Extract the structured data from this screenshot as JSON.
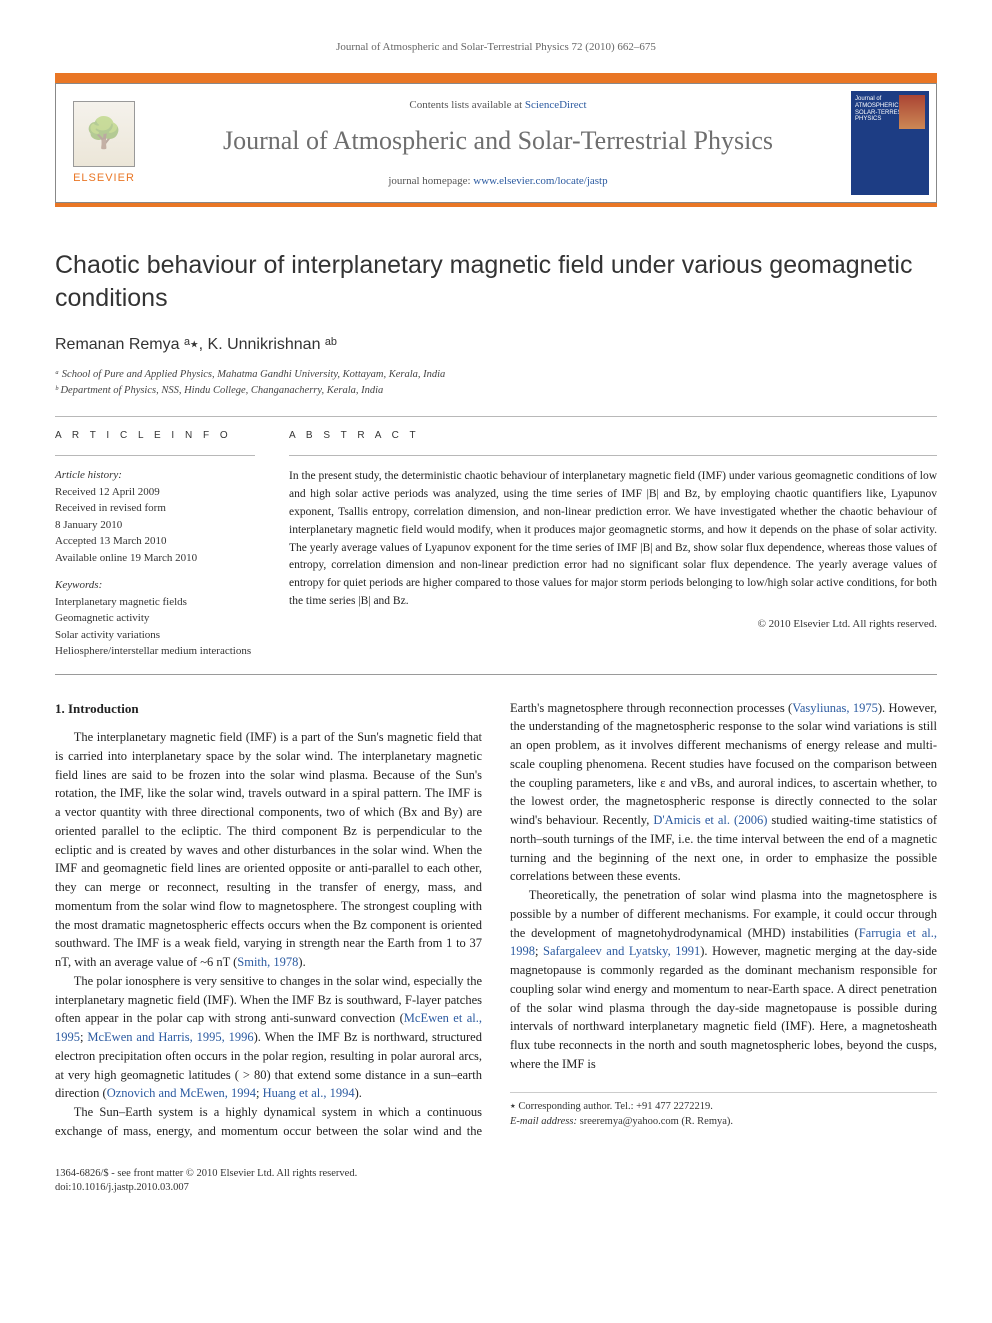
{
  "running_head": "Journal of Atmospheric and Solar-Terrestrial Physics 72 (2010) 662–675",
  "header": {
    "elsevier_label": "ELSEVIER",
    "contents_line_prefix": "Contents lists available at ",
    "contents_link": "ScienceDirect",
    "journal_title": "Journal of Atmospheric and Solar-Terrestrial Physics",
    "homepage_prefix": "journal homepage: ",
    "homepage_link": "www.elsevier.com/locate/jastp",
    "cover_text": "Journal of ATMOSPHERIC and SOLAR-TERRESTRIAL PHYSICS",
    "colors": {
      "accent": "#e97625",
      "link": "#2b5aa0",
      "border": "#888888",
      "cover_bg": "#1d3d84"
    }
  },
  "article": {
    "title": "Chaotic behaviour of interplanetary magnetic field under various geomagnetic conditions",
    "authors": "Remanan Remya ᵃ٭, K. Unnikrishnan ᵃᵇ",
    "affiliations": {
      "a": "ᵃ School of Pure and Applied Physics, Mahatma Gandhi University, Kottayam, Kerala, India",
      "b": "ᵇ Department of Physics, NSS, Hindu College, Changanacherry, Kerala, India"
    }
  },
  "info": {
    "heading": "A R T I C L E   I N F O",
    "history_label": "Article history:",
    "history": [
      "Received 12 April 2009",
      "Received in revised form",
      "8 January 2010",
      "Accepted 13 March 2010",
      "Available online 19 March 2010"
    ],
    "keywords_label": "Keywords:",
    "keywords": [
      "Interplanetary magnetic fields",
      "Geomagnetic activity",
      "Solar activity variations",
      "Heliosphere/interstellar medium interactions"
    ]
  },
  "abstract": {
    "heading": "A B S T R A C T",
    "body": "In the present study, the deterministic chaotic behaviour of interplanetary magnetic field (IMF) under various geomagnetic conditions of low and high solar active periods was analyzed, using the time series of IMF |B| and Bz, by employing chaotic quantifiers like, Lyapunov exponent, Tsallis entropy, correlation dimension, and non-linear prediction error. We have investigated whether the chaotic behaviour of interplanetary magnetic field would modify, when it produces major geomagnetic storms, and how it depends on the phase of solar activity. The yearly average values of Lyapunov exponent for the time series of IMF |B| and Bz, show solar flux dependence, whereas those values of entropy, correlation dimension and non-linear prediction error had no significant solar flux dependence. The yearly average values of entropy for quiet periods are higher compared to those values for major storm periods belonging to low/high solar active conditions, for both the time series |B| and Bz.",
    "copyright": "© 2010 Elsevier Ltd. All rights reserved."
  },
  "body_text": {
    "section_heading": "1. Introduction",
    "p1": "The interplanetary magnetic field (IMF) is a part of the Sun's magnetic field that is carried into interplanetary space by the solar wind. The interplanetary magnetic field lines are said to be frozen into the solar wind plasma. Because of the Sun's rotation, the IMF, like the solar wind, travels outward in a spiral pattern. The IMF is a vector quantity with three directional components, two of which (Bx and By) are oriented parallel to the ecliptic. The third component Bz is perpendicular to the ecliptic and is created by waves and other disturbances in the solar wind. When the IMF and geomagnetic field lines are oriented opposite or anti-parallel to each other, they can merge or reconnect, resulting in the transfer of energy, mass, and momentum from the solar wind flow to magnetosphere. The strongest coupling with the most dramatic magnetospheric effects occurs when the Bz component is oriented southward. The IMF is a weak field, varying in strength near the Earth from 1 to 37 nT, with an average value of ~6 nT (",
    "p1_cite": "Smith, 1978",
    "p1_end": ").",
    "p2": "The polar ionosphere is very sensitive to changes in the solar wind, especially the interplanetary magnetic field (IMF). When the IMF Bz is southward, F-layer patches often appear in the polar cap with strong anti-sunward convection (",
    "p2_cite1": "McEwen et al., 1995",
    "p2_mid": "; ",
    "p2_cite2": "McEwen and Harris, 1995, 1996",
    "p2_end": "). When the IMF Bz is northward, structured electron precipitation often occurs in the polar region, resulting in polar auroral arcs, at very high geomagnetic latitudes",
    "p3_start": "( > 80) that extend some distance in a sun–earth direction (",
    "p3_cite1": "Oznovich and McEwen, 1994",
    "p3_mid": "; ",
    "p3_cite2": "Huang et al., 1994",
    "p3_end": ").",
    "p4a": "The Sun–Earth system is a highly dynamical system in which a continuous exchange of mass, energy, and momentum occur between the solar wind and the Earth's magnetosphere through reconnection processes (",
    "p4_cite1": "Vasyliunas, 1975",
    "p4b": "). However, the understanding of the magnetospheric response to the solar wind variations is still an open problem, as it involves different mechanisms of energy release and multi-scale coupling phenomena. Recent studies have focused on the comparison between the coupling parameters, like ε and vBs, and auroral indices, to ascertain whether, to the lowest order, the magnetospheric response is directly connected to the solar wind's behaviour. Recently, ",
    "p4_cite2": "D'Amicis et al. (2006)",
    "p4c": " studied waiting-time statistics of north–south turnings of the IMF, i.e. the time interval between the end of a magnetic turning and the beginning of the next one, in order to emphasize the possible correlations between these events.",
    "p5a": "Theoretically, the penetration of solar wind plasma into the magnetosphere is possible by a number of different mechanisms. For example, it could occur through the development of magnetohydrodynamical (MHD) instabilities (",
    "p5_cite1": "Farrugia et al., 1998",
    "p5_mid": "; ",
    "p5_cite2": "Safargaleev and Lyatsky, 1991",
    "p5b": "). However, magnetic merging at the day-side magnetopause is commonly regarded as the dominant mechanism responsible for coupling solar wind energy and momentum to near-Earth space. A direct penetration of the solar wind plasma through the day-side magnetopause is possible during intervals of northward interplanetary magnetic field (IMF). Here, a magnetosheath flux tube reconnects in the north and south magnetospheric lobes, beyond the cusps, where the IMF is"
  },
  "corresponding": {
    "line1": "٭ Corresponding author. Tel.: +91 477 2272219.",
    "line2_label": "E-mail address:",
    "line2_value": " sreeremya@yahoo.com (R. Remya)."
  },
  "footer": {
    "issn": "1364-6826/$ - see front matter © 2010 Elsevier Ltd. All rights reserved.",
    "doi": "doi:10.1016/j.jastp.2010.03.007"
  }
}
